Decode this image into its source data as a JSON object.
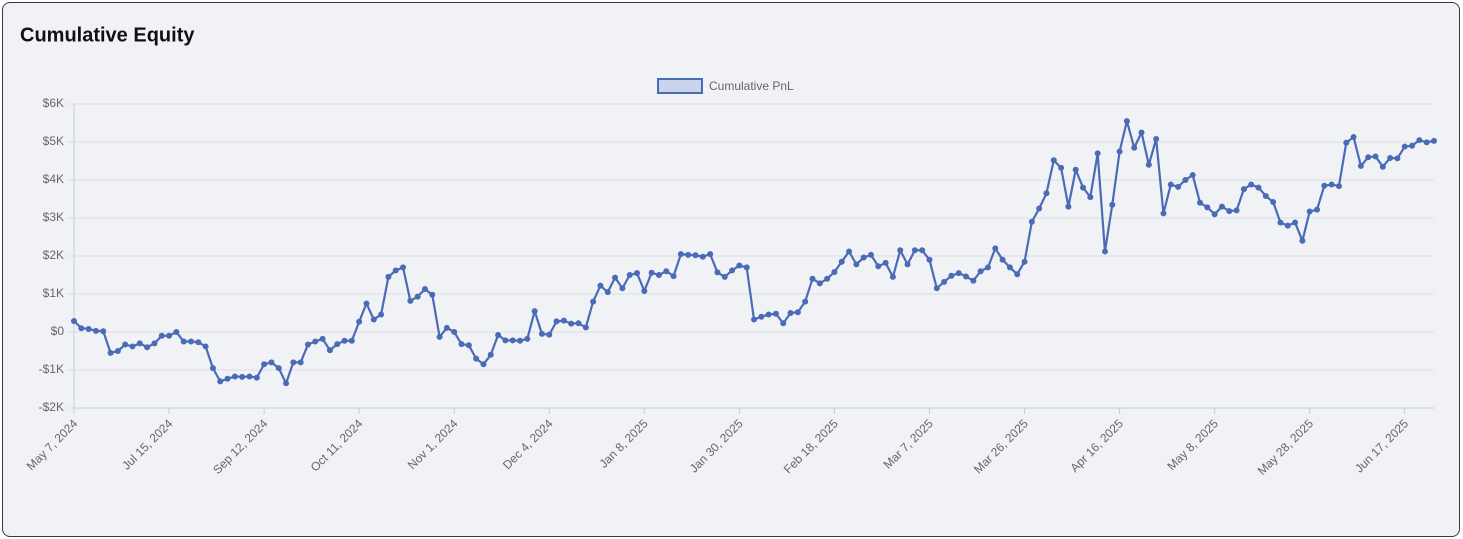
{
  "chart_data": {
    "type": "line",
    "title": "Cumulative Equity",
    "categories": [
      "May 7, 2024",
      null,
      null,
      null,
      null,
      null,
      null,
      null,
      null,
      null,
      null,
      null,
      null,
      "Jul 15, 2024",
      null,
      null,
      null,
      null,
      null,
      null,
      null,
      null,
      null,
      null,
      null,
      null,
      "Sep 12, 2024",
      null,
      null,
      null,
      null,
      null,
      null,
      null,
      null,
      null,
      null,
      null,
      null,
      "Oct 11, 2024",
      null,
      null,
      null,
      null,
      null,
      null,
      null,
      null,
      null,
      null,
      null,
      null,
      "Nov 1, 2024",
      null,
      null,
      null,
      null,
      null,
      null,
      null,
      null,
      null,
      null,
      null,
      null,
      "Dec 4, 2024",
      null,
      null,
      null,
      null,
      null,
      null,
      null,
      null,
      null,
      null,
      null,
      null,
      "Jan 8, 2025",
      null,
      null,
      null,
      null,
      null,
      null,
      null,
      null,
      null,
      null,
      null,
      null,
      "Jan 30, 2025",
      null,
      null,
      null,
      null,
      null,
      null,
      null,
      null,
      null,
      null,
      null,
      null,
      "Feb 18, 2025",
      null,
      null,
      null,
      null,
      null,
      null,
      null,
      null,
      null,
      null,
      null,
      null,
      "Mar 7, 2025",
      null,
      null,
      null,
      null,
      null,
      null,
      null,
      null,
      null,
      null,
      null,
      null,
      "Mar 26, 2025",
      null,
      null,
      null,
      null,
      null,
      null,
      null,
      null,
      null,
      null,
      null,
      null,
      "Apr 16, 2025",
      null,
      null,
      null,
      null,
      null,
      null,
      null,
      null,
      null,
      null,
      null,
      null,
      "May 8, 2025",
      null,
      null,
      null,
      null,
      null,
      null,
      null,
      null,
      null,
      null,
      null,
      null,
      "May 28, 2025",
      null,
      null,
      null,
      null,
      null,
      null,
      null,
      null,
      null,
      null,
      null,
      null,
      "Jun 17, 2025",
      null,
      null,
      null,
      null
    ],
    "series": [
      {
        "name": "Cumulative PnL",
        "color": "#4a6bb5",
        "fill": "#c9d3ea",
        "values": [
          290,
          100,
          80,
          30,
          20,
          -550,
          -500,
          -330,
          -380,
          -300,
          -400,
          -300,
          -100,
          -100,
          0,
          -250,
          -250,
          -270,
          -380,
          -950,
          -1300,
          -1230,
          -1170,
          -1180,
          -1170,
          -1200,
          -850,
          -800,
          -950,
          -1350,
          -800,
          -800,
          -330,
          -250,
          -180,
          -480,
          -320,
          -230,
          -230,
          270,
          750,
          330,
          460,
          1450,
          1620,
          1700,
          820,
          930,
          1130,
          980,
          -130,
          110,
          0,
          -320,
          -350,
          -700,
          -850,
          -600,
          -80,
          -220,
          -220,
          -230,
          -180,
          550,
          -50,
          -70,
          280,
          300,
          220,
          230,
          120,
          800,
          1220,
          1050,
          1430,
          1150,
          1500,
          1550,
          1080,
          1560,
          1500,
          1600,
          1470,
          2050,
          2030,
          2020,
          1980,
          2050,
          1570,
          1450,
          1620,
          1750,
          1700,
          330,
          400,
          460,
          480,
          230,
          500,
          520,
          800,
          1400,
          1280,
          1400,
          1580,
          1850,
          2120,
          1780,
          1960,
          2030,
          1730,
          1820,
          1450,
          2150,
          1780,
          2150,
          2150,
          1900,
          1150,
          1320,
          1480,
          1550,
          1460,
          1350,
          1600,
          1700,
          2200,
          1900,
          1700,
          1520,
          1850,
          2900,
          3250,
          3650,
          4520,
          4320,
          3300,
          4270,
          3800,
          3550,
          4700,
          2120,
          3350,
          4750,
          5550,
          4850,
          5250,
          4400,
          5080,
          3120,
          3880,
          3820,
          4000,
          4130,
          3400,
          3280,
          3100,
          3300,
          3180,
          3200,
          3760,
          3880,
          3800,
          3580,
          3420,
          2880,
          2800,
          2880,
          2400,
          3170,
          3220,
          3850,
          3880,
          3840,
          4980,
          5130,
          4370,
          4600,
          4620,
          4350,
          4580,
          4570,
          4880,
          4900,
          5050,
          4990,
          5030
        ]
      }
    ],
    "ylim": [
      -2000,
      6000
    ],
    "yticks": [
      {
        "value": -2000,
        "label": "-$2K"
      },
      {
        "value": -1000,
        "label": "-$1K"
      },
      {
        "value": 0,
        "label": "$0"
      },
      {
        "value": 1000,
        "label": "$1K"
      },
      {
        "value": 2000,
        "label": "$2K"
      },
      {
        "value": 3000,
        "label": "$3K"
      },
      {
        "value": 4000,
        "label": "$4K"
      },
      {
        "value": 5000,
        "label": "$5K"
      },
      {
        "value": 6000,
        "label": "$6K"
      }
    ],
    "grid": true,
    "legend": "top"
  }
}
